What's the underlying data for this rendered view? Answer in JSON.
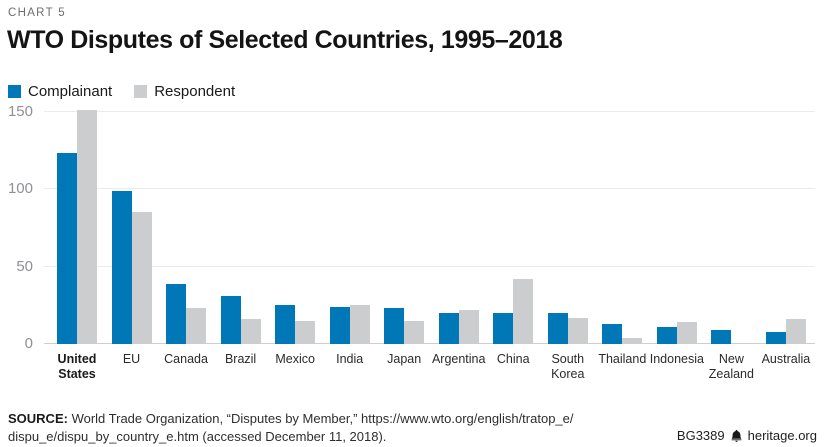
{
  "header": {
    "kicker": "CHART 5",
    "title": "WTO Disputes of Selected Countries, 1995–2018"
  },
  "chart_data": {
    "type": "bar",
    "title": "WTO Disputes of Selected Countries, 1995–2018",
    "categories": [
      "United States",
      "EU",
      "Canada",
      "Brazil",
      "Mexico",
      "India",
      "Japan",
      "Argentina",
      "China",
      "South Korea",
      "Thailand",
      "Indonesia",
      "New Zealand",
      "Australia"
    ],
    "series": [
      {
        "name": "Complainant",
        "color": "#0077b6",
        "values": [
          123,
          99,
          39,
          31,
          25,
          24,
          23,
          20,
          20,
          20,
          13,
          11,
          9,
          8
        ]
      },
      {
        "name": "Respondent",
        "color": "#cbcdcf",
        "values": [
          151,
          85,
          23,
          16,
          15,
          25,
          15,
          22,
          42,
          17,
          4,
          14,
          0,
          16
        ]
      }
    ],
    "ylim": [
      0,
      160
    ],
    "yticks": [
      0,
      50,
      100,
      150
    ],
    "grid": true,
    "legend_position": "top-left",
    "bold_category": "United States",
    "xlabel": "",
    "ylabel": ""
  },
  "footer": {
    "source_bold": "SOURCE:",
    "source_line1": " World Trade Organization, “Disputes by Member,” https://www.wto.org/english/tratop_e/",
    "source_line2": "dispu_e/dispu_by_country_e.htm (accessed December 11, 2018).",
    "credit_id": "BG3389",
    "credit_site": "heritage.org"
  }
}
